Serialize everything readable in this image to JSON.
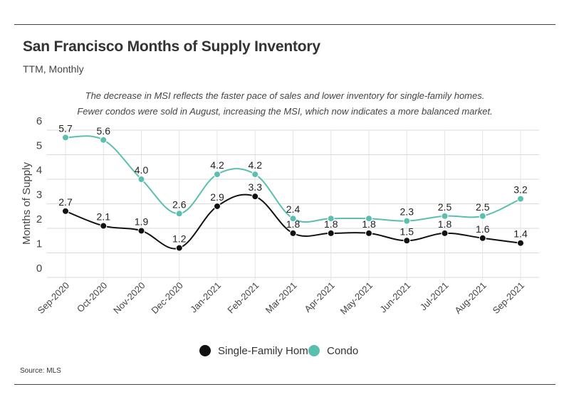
{
  "title": "San Francisco Months of Supply Inventory",
  "subtitle": "TTM, Monthly",
  "annotation": "The decrease in MSI reflects the faster pace of sales and lower inventory for single-family homes. Fewer condos were sold in August, increasing the MSI, which now indicates a more balanced market.",
  "source": "Source:  MLS",
  "chart_data": {
    "type": "line",
    "title": "San Francisco Months of Supply Inventory",
    "subtitle": "TTM, Monthly",
    "xlabel": "",
    "ylabel": "Months of Supply",
    "categories": [
      "Sep-2020",
      "Oct-2020",
      "Nov-2020",
      "Dec-2020",
      "Jan-2021",
      "Feb-2021",
      "Mar-2021",
      "Apr-2021",
      "May-2021",
      "Jun-2021",
      "Jul-2021",
      "Aug-2021",
      "Sep-2021"
    ],
    "ylim": [
      0,
      6
    ],
    "yticks": [
      "0",
      "1",
      "2",
      "3",
      "4",
      "5",
      "6"
    ],
    "grid": "horizontal",
    "legend": "bottom-center",
    "series": [
      {
        "name": "Single-Family Home",
        "color": "#111111",
        "values": [
          2.7,
          2.1,
          1.9,
          1.2,
          2.9,
          3.3,
          1.8,
          1.8,
          1.8,
          1.5,
          1.8,
          1.6,
          1.4
        ],
        "labels": [
          "2.7",
          "2.1",
          "1.9",
          "1.2",
          "2.9",
          "3.3",
          "1.8",
          "1.8",
          "1.8",
          "1.5",
          "1.8",
          "1.6",
          "1.4"
        ]
      },
      {
        "name": "Condo",
        "color": "#5bbfb0",
        "values": [
          5.7,
          5.6,
          4.0,
          2.6,
          4.2,
          4.2,
          2.4,
          2.4,
          2.4,
          2.3,
          2.5,
          2.5,
          3.2
        ],
        "labels": [
          "5.7",
          "5.6",
          "4.0",
          "2.6",
          "4.2",
          "4.2",
          "2.4",
          "",
          "",
          "2.3",
          "2.5",
          "2.5",
          "3.2"
        ]
      }
    ]
  }
}
